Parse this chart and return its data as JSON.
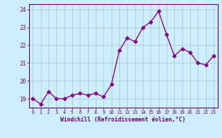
{
  "x": [
    0,
    1,
    2,
    3,
    4,
    5,
    6,
    7,
    8,
    9,
    10,
    11,
    12,
    13,
    14,
    15,
    16,
    17,
    18,
    19,
    20,
    21,
    22,
    23
  ],
  "y": [
    19.0,
    18.7,
    19.4,
    19.0,
    19.0,
    19.2,
    19.3,
    19.2,
    19.3,
    19.1,
    19.8,
    21.7,
    22.4,
    22.2,
    23.0,
    23.3,
    23.9,
    22.6,
    21.4,
    21.8,
    21.6,
    21.0,
    20.9,
    21.4
  ],
  "line_color": "#8b008b",
  "marker": "D",
  "marker_size": 2.5,
  "bg_color": "#cceeff",
  "grid_color": "#aacccc",
  "xlabel": "Windchill (Refroidissement éolien,°C)",
  "xlabel_color": "#660066",
  "tick_color": "#660066",
  "axis_color": "#660066",
  "ylim": [
    18.5,
    24.3
  ],
  "xlim": [
    -0.5,
    23.5
  ],
  "yticks": [
    19,
    20,
    21,
    22,
    23,
    24
  ],
  "xticks": [
    0,
    1,
    2,
    3,
    4,
    5,
    6,
    7,
    8,
    9,
    10,
    11,
    12,
    13,
    14,
    15,
    16,
    17,
    18,
    19,
    20,
    21,
    22,
    23
  ],
  "xtick_labels": [
    "0",
    "1",
    "2",
    "3",
    "4",
    "5",
    "6",
    "7",
    "8",
    "9",
    "10",
    "11",
    "12",
    "13",
    "14",
    "15",
    "16",
    "17",
    "18",
    "19",
    "20",
    "21",
    "22",
    "23"
  ],
  "linewidth": 1.0
}
